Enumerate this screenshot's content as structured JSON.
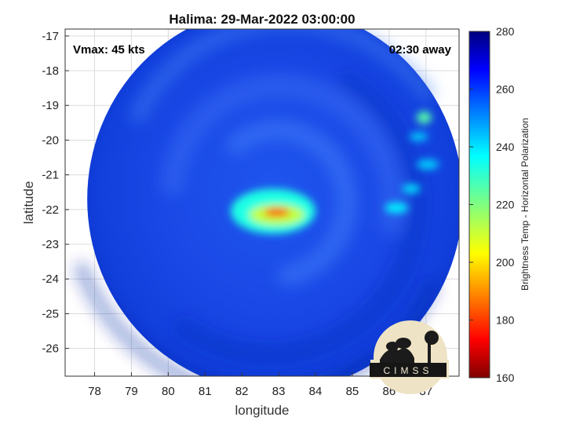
{
  "chart_data": {
    "type": "heatmap",
    "title": "Halima: 29-Mar-2022 03:00:00",
    "xlabel": "longitude",
    "ylabel": "latitude",
    "xlim": [
      77.2,
      87.9
    ],
    "ylim": [
      -26.8,
      -16.8
    ],
    "x_ticks": [
      78,
      79,
      80,
      81,
      82,
      83,
      84,
      85,
      86,
      87
    ],
    "y_ticks": [
      -17,
      -18,
      -19,
      -20,
      -21,
      -22,
      -23,
      -24,
      -25,
      -26
    ],
    "grid": true,
    "annotations": {
      "vmax": "Vmax: 45 kts",
      "time_offset": "02:30 away"
    },
    "colorbar": {
      "label": "Brightness Temp - Horizontal Polarization",
      "range": [
        160,
        280
      ],
      "ticks": [
        160,
        180,
        200,
        220,
        240,
        260,
        280
      ],
      "colormap": "jet"
    },
    "swath": {
      "center": [
        82.9,
        -21.7
      ],
      "radius_lon": 5.1,
      "radius_lat": 5.55
    },
    "features": [
      {
        "lon": 82.95,
        "lat": -22.08,
        "rx": 0.35,
        "ry": 0.12,
        "bt": 180
      },
      {
        "lon": 82.95,
        "lat": -22.15,
        "rx": 0.75,
        "ry": 0.3,
        "bt": 212
      },
      {
        "lon": 82.85,
        "lat": -22.05,
        "rx": 1.15,
        "ry": 0.65,
        "bt": 232
      },
      {
        "lon": 86.95,
        "lat": -19.35,
        "rx": 0.2,
        "ry": 0.18,
        "bt": 225
      },
      {
        "lon": 86.8,
        "lat": -19.9,
        "rx": 0.25,
        "ry": 0.12,
        "bt": 240
      },
      {
        "lon": 87.05,
        "lat": -20.7,
        "rx": 0.3,
        "ry": 0.14,
        "bt": 240
      },
      {
        "lon": 86.6,
        "lat": -21.4,
        "rx": 0.25,
        "ry": 0.13,
        "bt": 238
      },
      {
        "lon": 86.2,
        "lat": -21.95,
        "rx": 0.32,
        "ry": 0.15,
        "bt": 236
      }
    ]
  },
  "logo": {
    "text": "CIMSS"
  }
}
